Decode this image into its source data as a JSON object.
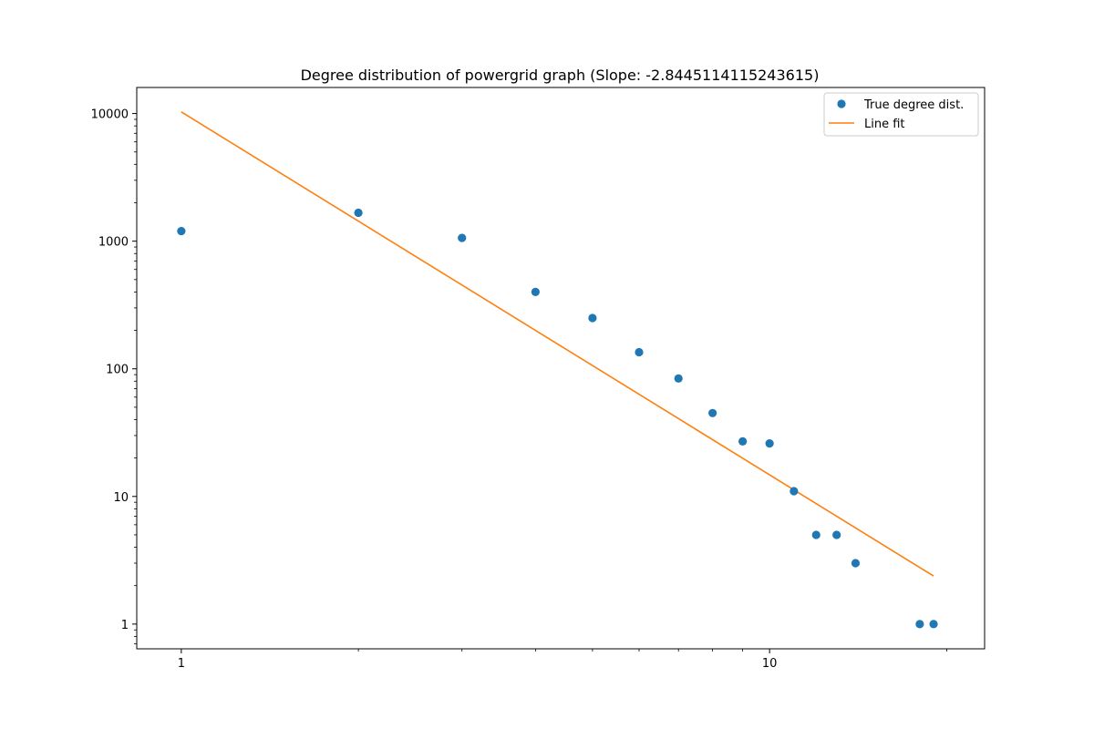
{
  "chart_data": {
    "type": "scatter",
    "title": "Degree distribution of powergrid graph (Slope: -2.8445114115243615)",
    "xlabel": "",
    "ylabel": "",
    "x_scale": "log",
    "y_scale": "log",
    "xlim": [
      0.84,
      23.2
    ],
    "ylim": [
      0.64,
      16000
    ],
    "x_ticks": [
      1,
      10
    ],
    "x_tick_labels": [
      "1",
      "10"
    ],
    "y_ticks": [
      1,
      10,
      100,
      1000,
      10000
    ],
    "y_tick_labels": [
      "1",
      "10",
      "100",
      "1000",
      "10000"
    ],
    "grid": false,
    "legend_position": "top-right",
    "series": [
      {
        "name": "True degree dist.",
        "kind": "scatter",
        "color": "#1f77b4",
        "x": [
          1,
          2,
          3,
          4,
          5,
          6,
          7,
          8,
          9,
          10,
          11,
          12,
          13,
          14,
          18,
          19
        ],
        "y": [
          1200,
          1670,
          1060,
          400,
          250,
          135,
          84,
          45,
          27,
          26,
          11,
          5,
          5,
          3,
          1,
          1
        ]
      },
      {
        "name": "Line fit",
        "kind": "line",
        "color": "#ff7f0e",
        "x": [
          1,
          19
        ],
        "y": [
          10300,
          2.38
        ]
      }
    ]
  }
}
